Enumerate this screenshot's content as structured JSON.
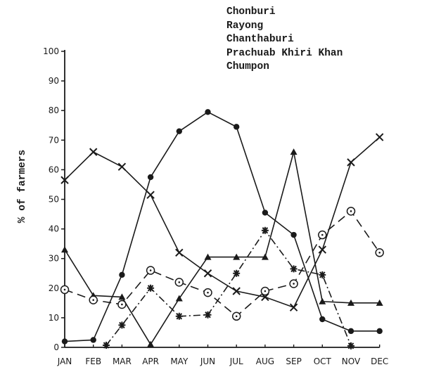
{
  "chart_data": {
    "type": "line",
    "title": "",
    "xlabel": "",
    "ylabel": "% of farmers",
    "ylim": [
      0,
      100
    ],
    "yticks": [
      0,
      10,
      20,
      30,
      40,
      50,
      60,
      70,
      80,
      90,
      100
    ],
    "ytick_labels": [
      "0",
      "10",
      "20",
      "30",
      "40",
      "50",
      "60",
      "70",
      "80",
      "90",
      "100"
    ],
    "categories": [
      "JAN",
      "FEB",
      "MAR",
      "APR",
      "MAY",
      "JUN",
      "JUL",
      "AUG",
      "SEP",
      "OCT",
      "NOV",
      "DEC"
    ],
    "grid": false,
    "legend_position": "top-right",
    "series": [
      {
        "name": "Chonburi",
        "marker": "filled-circle",
        "line": "solid",
        "values": [
          2,
          2.5,
          24.5,
          57.5,
          73,
          79.5,
          74.5,
          45.5,
          38,
          9.5,
          5.5,
          5.5
        ]
      },
      {
        "name": "Rayong",
        "marker": "x-cross",
        "line": "solid",
        "values": [
          56.5,
          66,
          61,
          51.5,
          32,
          25,
          19,
          17,
          13.5,
          33,
          62.5,
          71
        ]
      },
      {
        "name": "Chanthaburi",
        "marker": "filled-triangle",
        "line": "solid",
        "values": [
          33,
          17.5,
          17,
          1,
          16.5,
          30.5,
          30.5,
          30.5,
          66,
          15.5,
          15,
          15
        ]
      },
      {
        "name": "Prachuab Khiri Khan",
        "marker": "open-circle-dot",
        "line": "long-dash",
        "values": [
          19.5,
          16,
          14.5,
          26,
          22,
          18.5,
          10.5,
          19,
          21.5,
          38,
          46,
          32
        ]
      },
      {
        "name": "Chumpon",
        "marker": "asterisk",
        "line": "dash-dot",
        "values": [
          null,
          0.7,
          7.5,
          20,
          10.5,
          11,
          25,
          39.5,
          26.5,
          24.5,
          0.5,
          null
        ],
        "x_offsets": {
          "1": 0.45
        }
      }
    ]
  },
  "legend": {
    "items": [
      "Chonburi",
      "Rayong",
      "Chanthaburi",
      "Prachuab Khiri Khan",
      "Chumpon"
    ]
  },
  "axis": {
    "ylabel": "% of farmers"
  }
}
